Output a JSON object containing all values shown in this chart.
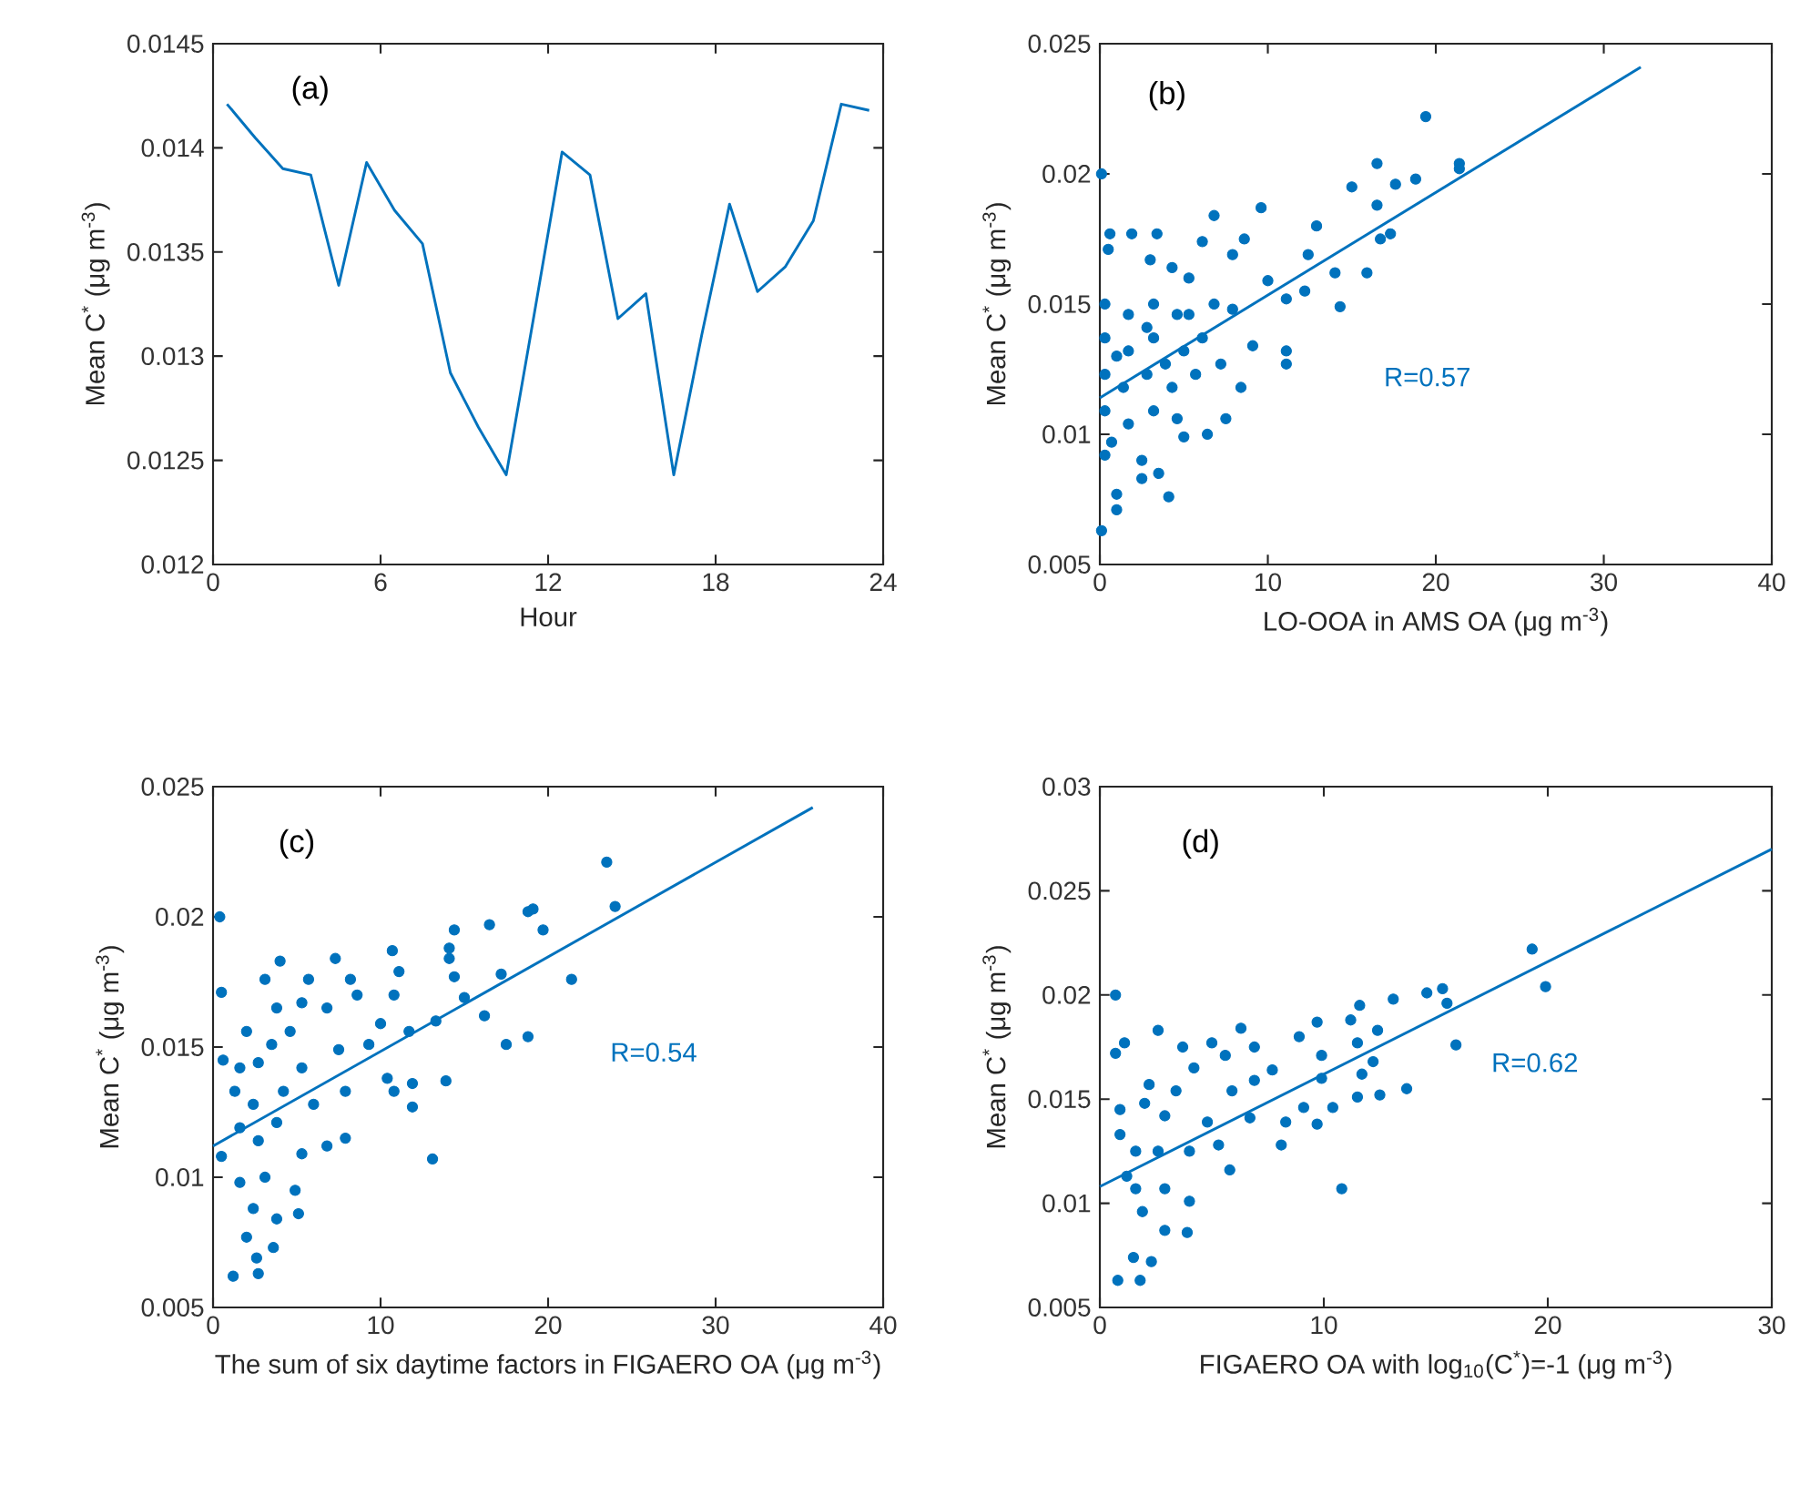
{
  "chart_data": [
    {
      "type": "line",
      "xlabel": "Hour",
      "ylabel": "Mean C$^{*}$ (μg m$^{-3}$)",
      "annotations": [
        "(a)"
      ],
      "x": [
        0.5,
        1.5,
        2.5,
        3.5,
        4.5,
        5.5,
        6.5,
        7.5,
        8.5,
        9.5,
        10.5,
        11.5,
        12.5,
        13.5,
        14.5,
        15.5,
        16.5,
        17.5,
        18.5,
        19.5,
        20.5,
        21.5,
        22.5,
        23.5
      ],
      "series": [
        {
          "color": "#0072bd",
          "values": [
            0.01421,
            0.01405,
            0.0139,
            0.01387,
            0.01334,
            0.01393,
            0.0137,
            0.01354,
            0.01292,
            0.01266,
            0.01243,
            0.0132,
            0.01398,
            0.01387,
            0.01318,
            0.0133,
            0.01243,
            0.0131,
            0.01373,
            0.01331,
            0.01343,
            0.01365,
            0.01421,
            0.01418
          ]
        }
      ],
      "xlim": [
        0,
        24
      ],
      "xticks": [
        0,
        6,
        12,
        18,
        24
      ],
      "ylim": [
        0.012,
        0.0145
      ],
      "yticks": [
        0.012,
        0.0125,
        0.013,
        0.0135,
        0.014,
        0.0145
      ],
      "line_style": "solid"
    },
    {
      "type": "scatter",
      "xlabel": "LO-OOA in AMS OA (μg m$^{-3}$)",
      "ylabel": "Mean C$^{*}$ (μg m$^{-3}$)",
      "annotations": [
        "(b)",
        "R=0.57"
      ],
      "series": [
        {
          "type": "scatter",
          "marker": "circle",
          "color": "#0072bd",
          "x": [
            0.1,
            0.1,
            19.4,
            21.4,
            21.4,
            16.5,
            17.6,
            18.8,
            15,
            16.5,
            17.3,
            16.7,
            9.6,
            6.8,
            12.9,
            12.4,
            14,
            15.9,
            14.3,
            12.2,
            11.1,
            10,
            11.1,
            11.1,
            9.1,
            8.4,
            7.5,
            6.4,
            4.1,
            1,
            1,
            0.6,
            1.9,
            3.4,
            0.5,
            3,
            4.3,
            5.3,
            7.9,
            8.6,
            6.1,
            0.3,
            1.7,
            3.2,
            4.6,
            6.8,
            7.9,
            0.3,
            1.7,
            3.2,
            5,
            6.1,
            7.2,
            0.3,
            1.4,
            2.8,
            4.3,
            5.7,
            0.3,
            1.7,
            3.2,
            4.6,
            0.3,
            2.5,
            3.5,
            2.5,
            5,
            0.7,
            1,
            3.9,
            2.8,
            5.3
          ],
          "values": [
            0.02,
            0.0063,
            0.0222,
            0.0204,
            0.0202,
            0.0204,
            0.0196,
            0.0198,
            0.0195,
            0.0188,
            0.0177,
            0.0175,
            0.0187,
            0.0184,
            0.018,
            0.0169,
            0.0162,
            0.0162,
            0.0149,
            0.0155,
            0.0152,
            0.0159,
            0.0132,
            0.0127,
            0.0134,
            0.0118,
            0.0106,
            0.01,
            0.0076,
            0.0071,
            0.0077,
            0.0177,
            0.0177,
            0.0177,
            0.0171,
            0.0167,
            0.0164,
            0.016,
            0.0169,
            0.0175,
            0.0174,
            0.015,
            0.0146,
            0.015,
            0.0146,
            0.015,
            0.0148,
            0.0137,
            0.0132,
            0.0137,
            0.0132,
            0.0137,
            0.0127,
            0.0123,
            0.0118,
            0.0123,
            0.0118,
            0.0123,
            0.0109,
            0.0104,
            0.0109,
            0.0106,
            0.0092,
            0.009,
            0.0085,
            0.0083,
            0.0099,
            0.0097,
            0.013,
            0.0127,
            0.0141,
            0.0146
          ]
        },
        {
          "type": "line",
          "color": "#0072bd",
          "x": [
            0,
            32.2
          ],
          "values": [
            0.0114,
            0.0241
          ]
        }
      ],
      "xlim": [
        0,
        40
      ],
      "xticks": [
        0,
        10,
        20,
        30,
        40
      ],
      "ylim": [
        0.005,
        0.025
      ],
      "yticks": [
        0.005,
        0.01,
        0.015,
        0.02,
        0.025
      ]
    },
    {
      "type": "scatter",
      "xlabel": "The sum of six daytime factors in FIGAERO OA (μg m$^{-3}$)",
      "ylabel": "Mean C$^{*}$ (μg m$^{-3}$)",
      "annotations": [
        "(c)",
        "R=0.54"
      ],
      "series": [
        {
          "type": "scatter",
          "marker": "circle",
          "color": "#0072bd",
          "x": [
            23.5,
            24,
            0.4,
            0.5,
            1.2,
            2.7,
            18.8,
            19.1,
            19.7,
            16.5,
            14.4,
            21.4,
            18.8,
            17.5,
            17.2,
            16.2,
            14.1,
            14.1,
            14.4,
            15,
            13.3,
            13.1,
            13.9,
            11.9,
            11.9,
            10.8,
            10.4,
            10.7,
            10.8,
            11.1,
            11.7,
            10,
            9.3,
            7.3,
            4,
            3.1,
            5.7,
            8.2,
            8.6,
            6.8,
            5.3,
            3.8,
            2,
            0.6,
            1.6,
            3.5,
            7.5,
            7.9,
            7.9,
            6.8,
            5.3,
            1.3,
            2.4,
            4.2,
            6,
            0.5,
            1.6,
            2.7,
            3.8,
            1.6,
            3.1,
            4.9,
            2.4,
            3.8,
            5.1,
            2,
            3.6,
            2.6,
            2.7,
            5.3,
            4.6
          ],
          "values": [
            0.0221,
            0.0204,
            0.02,
            0.0171,
            0.0062,
            0.0063,
            0.0202,
            0.0203,
            0.0195,
            0.0197,
            0.0195,
            0.0176,
            0.0154,
            0.0151,
            0.0178,
            0.0162,
            0.0188,
            0.0184,
            0.0177,
            0.0169,
            0.016,
            0.0107,
            0.0137,
            0.0136,
            0.0127,
            0.0133,
            0.0138,
            0.0187,
            0.017,
            0.0179,
            0.0156,
            0.0159,
            0.0151,
            0.0184,
            0.0183,
            0.0176,
            0.0176,
            0.0176,
            0.017,
            0.0165,
            0.0167,
            0.0165,
            0.0156,
            0.0145,
            0.0142,
            0.0151,
            0.0149,
            0.0133,
            0.0115,
            0.0112,
            0.0109,
            0.0133,
            0.0128,
            0.0133,
            0.0128,
            0.0108,
            0.0119,
            0.0114,
            0.0121,
            0.0098,
            0.01,
            0.0095,
            0.0088,
            0.0084,
            0.0086,
            0.0077,
            0.0073,
            0.0069,
            0.0144,
            0.0142,
            0.0156
          ]
        },
        {
          "type": "line",
          "color": "#0072bd",
          "x": [
            0,
            35.8
          ],
          "values": [
            0.0112,
            0.0242
          ]
        }
      ],
      "xlim": [
        0,
        40
      ],
      "xticks": [
        0,
        10,
        20,
        30,
        40
      ],
      "ylim": [
        0.005,
        0.025
      ],
      "yticks": [
        0.005,
        0.01,
        0.015,
        0.02,
        0.025
      ]
    },
    {
      "type": "scatter",
      "xlabel": "FIGAERO OA with log$_{10}$(C$^{*}$)=-1 (μg m$^{-3}$)",
      "ylabel": "Mean C$^{*}$ (μg m$^{-3}$)",
      "annotations": [
        "(d)",
        "R=0.62"
      ],
      "series": [
        {
          "type": "scatter",
          "marker": "circle",
          "color": "#0072bd",
          "x": [
            19.3,
            19.9,
            0.7,
            0.7,
            1.1,
            0.8,
            1.8,
            10.8,
            15.3,
            14.6,
            15.5,
            15.9,
            13.1,
            11.6,
            12.4,
            9.7,
            11.2,
            13.7,
            12.5,
            11.5,
            11.7,
            12.2,
            11.5,
            9.9,
            8.9,
            6.3,
            2.6,
            3.7,
            5,
            6.9,
            9.9,
            10.4,
            9.7,
            9.1,
            8.1,
            8.3,
            7.7,
            6.9,
            5.9,
            6.7,
            5.8,
            5.3,
            4,
            3.9,
            2.9,
            2.2,
            0.9,
            0.9,
            1.6,
            2.6,
            4,
            4.8,
            1.6,
            2.9,
            1.9,
            2.9,
            1.5,
            2.3,
            2,
            3.4,
            4.2,
            5.6,
            1.2
          ],
          "values": [
            0.0222,
            0.0204,
            0.02,
            0.0172,
            0.0177,
            0.0063,
            0.0063,
            0.0107,
            0.0203,
            0.0201,
            0.0196,
            0.0176,
            0.0198,
            0.0195,
            0.0183,
            0.0187,
            0.0188,
            0.0155,
            0.0152,
            0.0151,
            0.0162,
            0.0168,
            0.0177,
            0.0171,
            0.018,
            0.0184,
            0.0183,
            0.0175,
            0.0177,
            0.0175,
            0.016,
            0.0146,
            0.0138,
            0.0146,
            0.0128,
            0.0139,
            0.0164,
            0.0159,
            0.0154,
            0.0141,
            0.0116,
            0.0128,
            0.0101,
            0.0086,
            0.0142,
            0.0157,
            0.0145,
            0.0133,
            0.0125,
            0.0125,
            0.0125,
            0.0139,
            0.0107,
            0.0107,
            0.0096,
            0.0087,
            0.0074,
            0.0072,
            0.0148,
            0.0154,
            0.0165,
            0.0171,
            0.0113
          ]
        },
        {
          "type": "line",
          "color": "#0072bd",
          "x": [
            0,
            30
          ],
          "values": [
            0.0108,
            0.027
          ]
        }
      ],
      "xlim": [
        0,
        30
      ],
      "xticks": [
        0,
        10,
        20,
        30
      ],
      "ylim": [
        0.005,
        0.03
      ],
      "yticks": [
        0.005,
        0.01,
        0.015,
        0.02,
        0.025,
        0.03
      ]
    }
  ]
}
